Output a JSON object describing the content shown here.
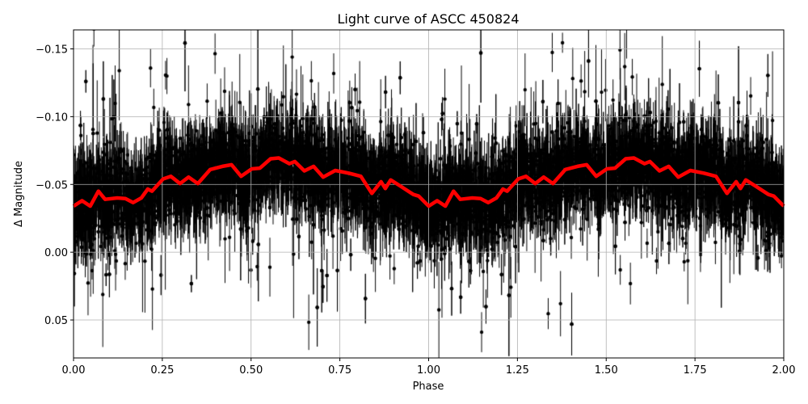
{
  "chart_data": {
    "type": "scatter",
    "title": "Light curve of ASCC 450824",
    "xlabel": "Phase",
    "ylabel": "Δ Magnitude",
    "xlim": [
      0,
      2
    ],
    "ylim": [
      0.078,
      -0.164
    ],
    "y_inverted": true,
    "grid": true,
    "x_ticks": [
      "0.00",
      "0.25",
      "0.50",
      "0.75",
      "1.00",
      "1.25",
      "1.50",
      "1.75",
      "2.00"
    ],
    "y_ticks": [
      "−0.15",
      "−0.10",
      "−0.05",
      "0.00",
      "0.05"
    ],
    "x_tick_values": [
      0,
      0.25,
      0.5,
      0.75,
      1,
      1.25,
      1.5,
      1.75,
      2
    ],
    "y_tick_values": [
      -0.15,
      -0.1,
      -0.05,
      0.0,
      0.05
    ],
    "points_color": "#000000",
    "curve_color": "#ff0000",
    "smoothed_curve_one_period": {
      "phase": [
        0.0,
        0.024,
        0.047,
        0.07,
        0.089,
        0.123,
        0.146,
        0.168,
        0.191,
        0.209,
        0.221,
        0.252,
        0.274,
        0.3,
        0.324,
        0.35,
        0.385,
        0.419,
        0.445,
        0.472,
        0.502,
        0.525,
        0.555,
        0.578,
        0.608,
        0.623,
        0.65,
        0.676,
        0.703,
        0.737,
        0.775,
        0.809,
        0.84,
        0.866,
        0.878,
        0.893,
        0.919,
        0.957,
        0.972,
        1.0
      ],
      "magnitude": [
        -0.034,
        -0.038,
        -0.034,
        -0.045,
        -0.039,
        -0.04,
        -0.0396,
        -0.0366,
        -0.04,
        -0.0466,
        -0.045,
        -0.054,
        -0.056,
        -0.0506,
        -0.0554,
        -0.0506,
        -0.061,
        -0.0633,
        -0.0645,
        -0.056,
        -0.0615,
        -0.062,
        -0.0689,
        -0.0695,
        -0.0653,
        -0.0669,
        -0.06,
        -0.0633,
        -0.0554,
        -0.0603,
        -0.0583,
        -0.056,
        -0.0434,
        -0.052,
        -0.047,
        -0.0533,
        -0.049,
        -0.0426,
        -0.0414,
        -0.034
      ]
    }
  }
}
